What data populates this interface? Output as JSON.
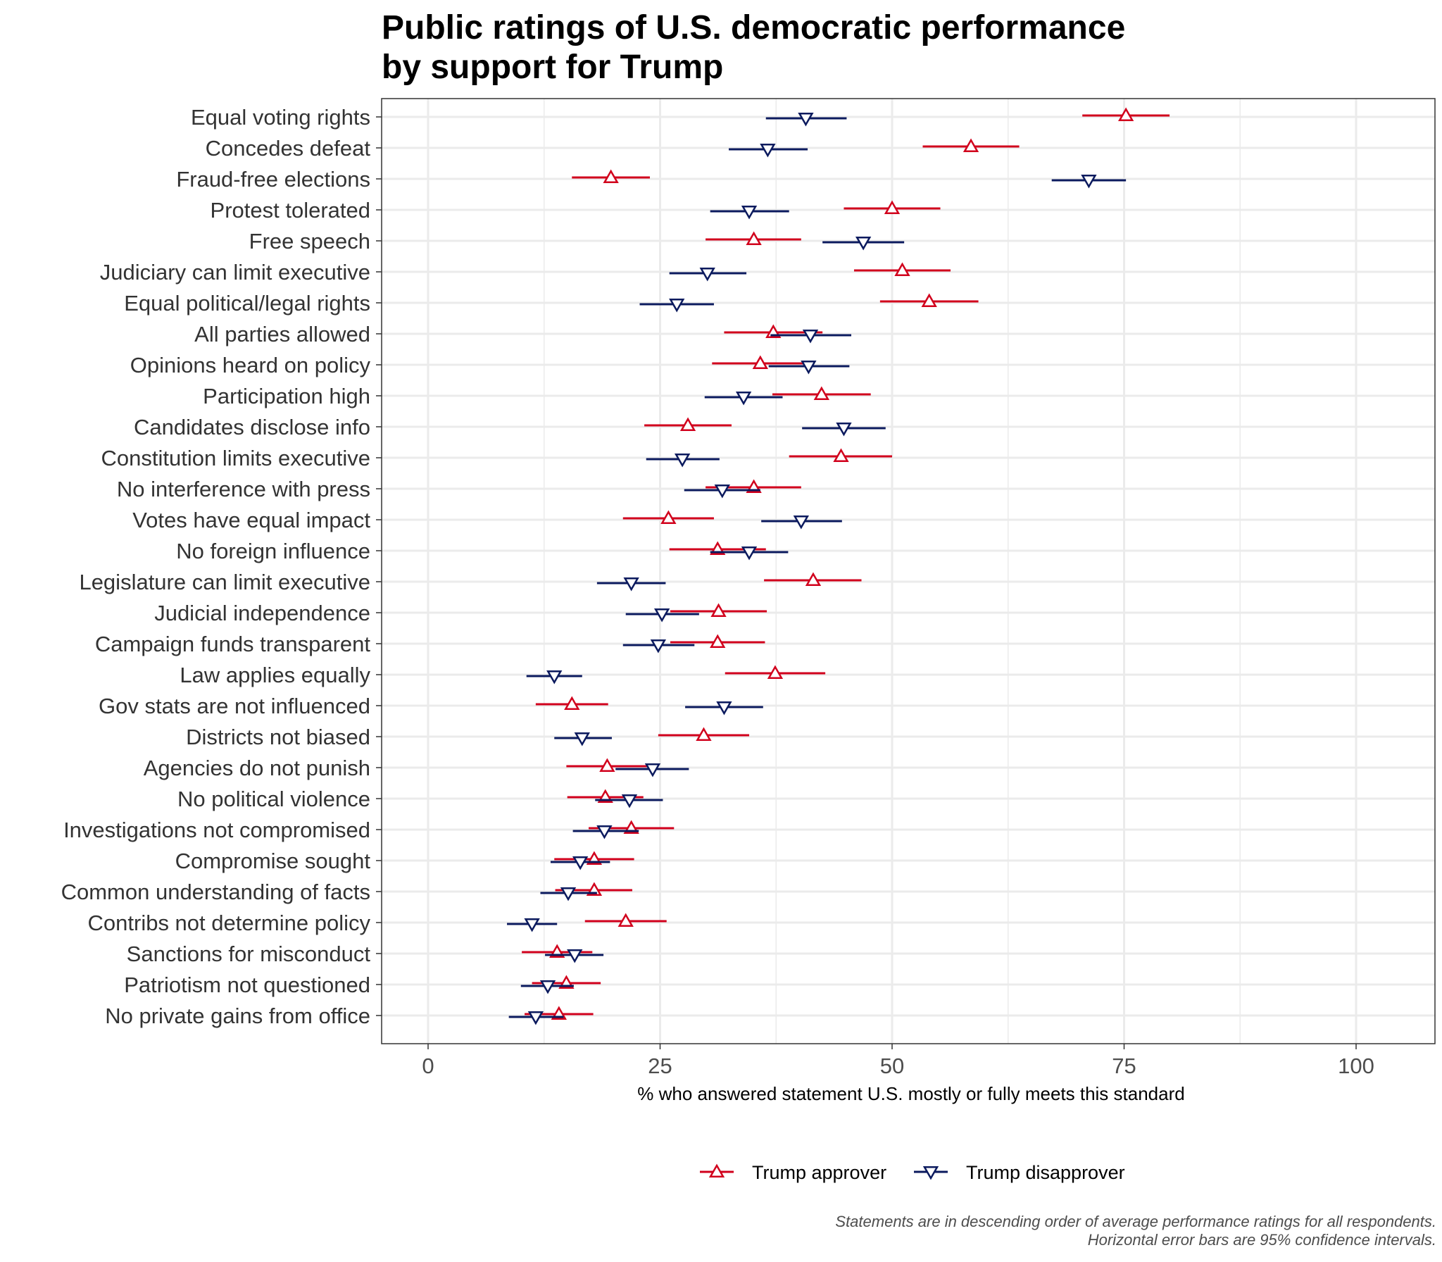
{
  "chart_data": {
    "type": "scatter",
    "title_line1": "Public ratings of U.S. democratic performance",
    "title_line2": "by support for Trump",
    "xlabel": "% who answered statement U.S. mostly or fully meets this standard",
    "caption_line1": "Statements are in descending order of average performance ratings for all respondents.",
    "caption_line2": "Horizontal error bars are 95% confidence intervals.",
    "xlim": [
      -5,
      108
    ],
    "xticks": [
      0,
      25,
      50,
      75,
      100
    ],
    "xtick_labels": [
      "0",
      "25",
      "50",
      "75",
      "100"
    ],
    "grid": true,
    "legend_position": "bottom",
    "colors": {
      "approver": "#d1001c",
      "disapprover": "#0b1a5e",
      "grid": "#ebebeb"
    },
    "categories": [
      "Equal voting rights",
      "Concedes defeat",
      "Fraud-free elections",
      "Protest tolerated",
      "Free speech",
      "Judiciary can limit executive",
      "Equal political/legal rights",
      "All parties allowed",
      "Opinions heard on policy",
      "Participation high",
      "Candidates disclose info",
      "Constitution limits executive",
      "No interference with press",
      "Votes have equal impact",
      "No foreign influence",
      "Legislature can limit executive",
      "Judicial independence",
      "Campaign funds transparent",
      "Law applies equally",
      "Gov stats are not influenced",
      "Districts not biased",
      "Agencies do not punish",
      "No political violence",
      "Investigations not compromised",
      "Compromise sought",
      "Common understanding of facts",
      "Contribs not determine policy",
      "Sanctions for misconduct",
      "Patriotism not questioned",
      "No private gains from office"
    ],
    "series": [
      {
        "name": "Trump approver",
        "marker": "triangle-up",
        "values": [
          75.2,
          58.5,
          19.7,
          50.0,
          35.1,
          51.1,
          54.0,
          37.2,
          35.8,
          42.4,
          28.0,
          44.5,
          35.1,
          25.9,
          31.2,
          41.5,
          31.3,
          31.2,
          37.4,
          15.5,
          29.7,
          19.3,
          19.1,
          21.9,
          17.9,
          17.9,
          21.3,
          13.9,
          14.9,
          14.1
        ],
        "lower": [
          70.5,
          53.3,
          15.5,
          44.8,
          29.9,
          45.9,
          48.7,
          31.9,
          30.6,
          37.1,
          23.3,
          38.9,
          29.9,
          21.0,
          26.0,
          36.2,
          26.1,
          26.1,
          32.0,
          11.6,
          24.8,
          14.9,
          15.0,
          17.3,
          13.6,
          13.7,
          16.9,
          10.1,
          11.2,
          10.4
        ],
        "upper": [
          79.9,
          63.7,
          23.9,
          55.2,
          40.2,
          56.3,
          59.3,
          42.5,
          41.0,
          47.7,
          32.7,
          50.0,
          40.2,
          30.8,
          36.4,
          46.7,
          36.5,
          36.3,
          42.8,
          19.4,
          34.6,
          23.7,
          23.2,
          26.5,
          22.2,
          22.0,
          25.7,
          17.7,
          18.6,
          17.8
        ]
      },
      {
        "name": "Trump disapprover",
        "marker": "triangle-down",
        "values": [
          40.7,
          36.6,
          71.2,
          34.6,
          46.9,
          30.1,
          26.8,
          41.2,
          41.0,
          34.0,
          44.8,
          27.4,
          31.7,
          40.2,
          34.6,
          21.9,
          25.2,
          24.8,
          13.6,
          31.9,
          16.6,
          24.2,
          21.7,
          19.0,
          16.4,
          15.1,
          11.2,
          15.8,
          12.9,
          11.6
        ],
        "lower": [
          36.4,
          32.4,
          67.2,
          30.4,
          42.5,
          26.0,
          22.8,
          36.9,
          36.7,
          29.8,
          40.3,
          23.5,
          27.6,
          35.9,
          30.4,
          18.2,
          21.3,
          21.0,
          10.6,
          27.7,
          13.6,
          20.2,
          18.0,
          15.6,
          13.2,
          12.1,
          8.5,
          12.6,
          10.0,
          8.7
        ],
        "upper": [
          45.1,
          40.9,
          75.2,
          38.9,
          51.3,
          34.3,
          30.8,
          45.6,
          45.4,
          38.2,
          49.3,
          31.4,
          35.8,
          44.6,
          38.8,
          25.6,
          29.2,
          28.7,
          16.6,
          36.1,
          19.8,
          28.1,
          25.3,
          22.7,
          19.6,
          18.2,
          13.9,
          18.9,
          15.7,
          14.6
        ]
      }
    ]
  }
}
